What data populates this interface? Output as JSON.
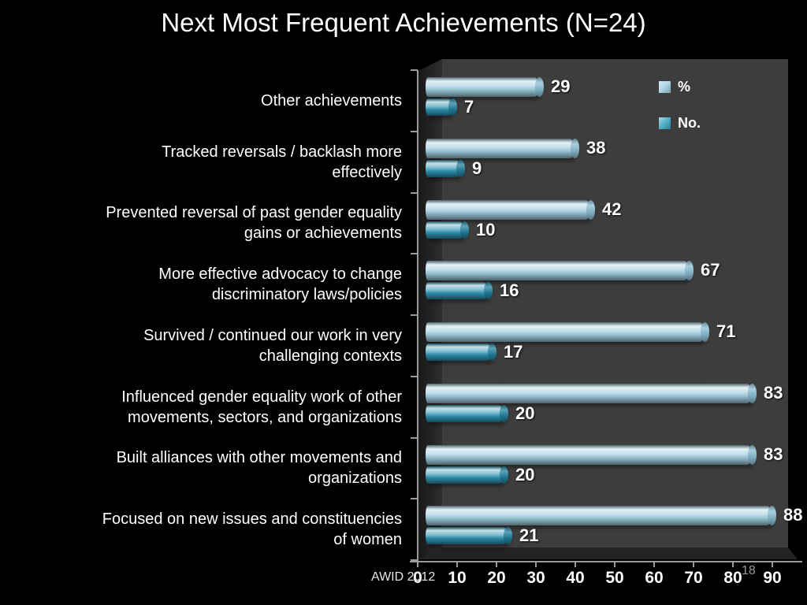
{
  "slide": {
    "title": "Next Most Frequent Achievements (N=24)",
    "footer_left": "AWID 2012",
    "page_number": "18"
  },
  "legend": {
    "position": "top-right",
    "items": [
      {
        "label": "%",
        "color": "#9fcfe1"
      },
      {
        "label": "No.",
        "color": "#35a2c2"
      }
    ]
  },
  "chart_data": {
    "type": "bar",
    "orientation": "horizontal",
    "title": "Next Most Frequent Achievements (N=24)",
    "grid": false,
    "plot_bg": "#3d3d3d",
    "wall_color": "#232323",
    "axis_color": "#9a9a9a",
    "categories": [
      "Other achievements",
      "Tracked reversals / backlash more\neffectively",
      "Prevented reversal of past gender equality\ngains or achievements",
      "More effective advocacy to change\ndiscriminatory laws/policies",
      "Survived / continued our work in very\nchallenging contexts",
      "Influenced gender equality work of other\nmovements, sectors, and organizations",
      "Built alliances with other movements and\norganizations",
      "Focused on new issues and constituencies\nof women"
    ],
    "series": [
      {
        "name": "%",
        "color": "#9cc9dc",
        "cap_color": "#8abed4",
        "values": [
          29,
          38,
          42,
          67,
          71,
          83,
          83,
          88
        ]
      },
      {
        "name": "No.",
        "color": "#2e93b2",
        "cap_color": "#21809d",
        "values": [
          7,
          9,
          10,
          16,
          17,
          20,
          20,
          21
        ]
      }
    ],
    "x_ticks": [
      "0",
      "10",
      "20",
      "30",
      "40",
      "50",
      "60",
      "70",
      "80",
      "90"
    ],
    "xlim": [
      0,
      90
    ]
  }
}
